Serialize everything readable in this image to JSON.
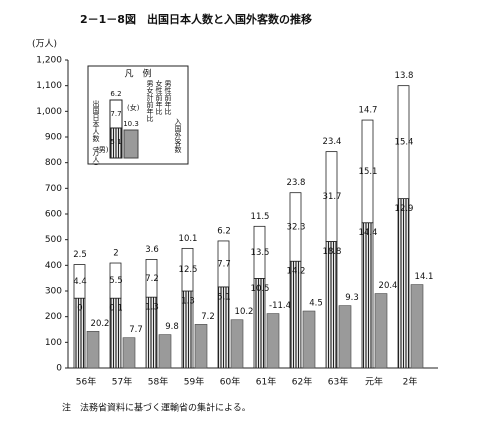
{
  "chart_data": {
    "type": "bar",
    "title": "2－1－8図　出国日本人数と入国外客数の推移",
    "ylabel": "(万人)",
    "categories": [
      "56年",
      "57年",
      "58年",
      "59年",
      "60年",
      "61年",
      "62年",
      "63年",
      "元年",
      "2年"
    ],
    "series": [
      {
        "name": "(男)",
        "color": "#444",
        "stack": "jp",
        "values": [
          272,
          272,
          276,
          300,
          316,
          349,
          416,
          493,
          566,
          660
        ]
      },
      {
        "name": "(女)",
        "color": "#ffffff",
        "stack": "jp",
        "values": [
          131,
          137,
          147,
          166,
          179,
          203,
          267,
          350,
          400,
          440
        ]
      },
      {
        "name": "入国外客数",
        "color": "#9a9a9a",
        "values": [
          143,
          118,
          130,
          170,
          188,
          212,
          222,
          243,
          290,
          325
        ]
      }
    ],
    "rate_labels": [
      {
        "name": "男女計前年比",
        "values": [
          2.5,
          2.0,
          3.6,
          10.1,
          6.2,
          11.5,
          23.8,
          23.4,
          14.7,
          13.8
        ]
      },
      {
        "name": "女性前年比",
        "values": [
          4.4,
          5.5,
          7.2,
          12.5,
          7.7,
          13.5,
          32.3,
          31.7,
          15.1,
          15.4
        ]
      },
      {
        "name": "男性前年比",
        "values": [
          0.0,
          0.1,
          1.3,
          1.3,
          5.1,
          10.5,
          14.2,
          18.8,
          14.4,
          12.9
        ]
      },
      {
        "name": "入国外客数前年比",
        "values": [
          20.2,
          7.7,
          9.8,
          7.2,
          10.2,
          -11.4,
          4.5,
          9.3,
          20.4,
          14.1
        ]
      }
    ],
    "legend": {
      "title": "凡　例",
      "left_label": "出国日本人数（万人）",
      "samples": [
        6.2,
        7.7,
        5.1,
        10.3
      ]
    },
    "ylim": [
      0,
      1200
    ],
    "yticks": [
      0,
      100,
      200,
      300,
      400,
      500,
      600,
      700,
      800,
      900,
      {
        "value": 1000,
        "label": "1,000"
      },
      {
        "value": 1100,
        "label": "1,100"
      },
      {
        "value": 1200,
        "label": "1,200"
      }
    ],
    "note": "注　法務省資料に基づく運輸省の集計による。"
  }
}
